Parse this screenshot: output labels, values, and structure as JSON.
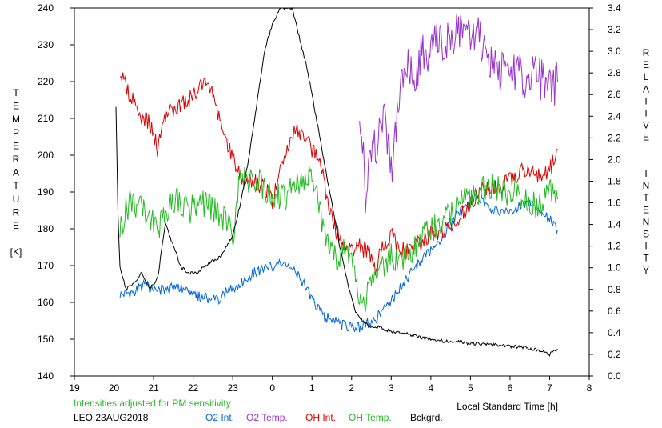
{
  "chart_data": {
    "type": "line",
    "left_axis_title_chars": [
      "T",
      "E",
      "M",
      "P",
      "E",
      "R",
      "A",
      "T",
      "U",
      "R",
      "E",
      "",
      "[K]"
    ],
    "right_axis_title_chars": [
      "R",
      "E",
      "L",
      "A",
      "T",
      "I",
      "V",
      "E",
      "",
      "",
      "I",
      "N",
      "T",
      "E",
      "N",
      "S",
      "I",
      "T",
      "Y"
    ],
    "xlabel": "Local Standard Time [h]",
    "note": "Intensities adjusted for PM sensitivity",
    "station_date": "LEO 23AUG2018",
    "x_ticks": [
      {
        "value": 19,
        "label": "19"
      },
      {
        "value": 21,
        "label": "21"
      },
      {
        "value": 22,
        "label": "22"
      },
      {
        "value": 23,
        "label": "23"
      },
      {
        "value": 24,
        "label": "0"
      },
      {
        "value": 25,
        "label": "1"
      },
      {
        "value": 26,
        "label": "2"
      },
      {
        "value": 27,
        "label": "3"
      },
      {
        "value": 28,
        "label": "4"
      },
      {
        "value": 29,
        "label": "5"
      },
      {
        "value": 30,
        "label": "6"
      },
      {
        "value": 31,
        "label": "7"
      },
      {
        "value": 32,
        "label": "8"
      }
    ],
    "x_tick_20": {
      "value": 20,
      "label": "20"
    },
    "xlim": [
      19,
      32
    ],
    "ylim_left": [
      140,
      240
    ],
    "ylim_right": [
      0.0,
      3.4
    ],
    "y_left_ticks": [
      "140",
      "150",
      "160",
      "170",
      "180",
      "190",
      "200",
      "210",
      "220",
      "230",
      "240"
    ],
    "y_right_ticks": [
      "0.0",
      "0.2",
      "0.4",
      "0.6",
      "0.8",
      "1.0",
      "1.2",
      "1.4",
      "1.6",
      "1.8",
      "2.0",
      "2.2",
      "2.4",
      "2.6",
      "2.8",
      "3.0",
      "3.2",
      "3.4"
    ],
    "grid": false,
    "series": [
      {
        "name": "O2 Int.",
        "color": "#0066dd",
        "axis": "right",
        "points": [
          [
            20.15,
            0.75
          ],
          [
            20.5,
            0.78
          ],
          [
            20.8,
            0.85
          ],
          [
            21.0,
            0.78
          ],
          [
            21.3,
            0.8
          ],
          [
            21.6,
            0.82
          ],
          [
            22.0,
            0.75
          ],
          [
            22.3,
            0.72
          ],
          [
            22.6,
            0.7
          ],
          [
            22.9,
            0.8
          ],
          [
            23.2,
            0.85
          ],
          [
            23.5,
            0.95
          ],
          [
            23.8,
            1.0
          ],
          [
            24.2,
            1.03
          ],
          [
            24.5,
            1.0
          ],
          [
            24.8,
            0.85
          ],
          [
            25.0,
            0.7
          ],
          [
            25.3,
            0.55
          ],
          [
            25.6,
            0.5
          ],
          [
            25.9,
            0.45
          ],
          [
            26.2,
            0.45
          ],
          [
            26.5,
            0.5
          ],
          [
            26.8,
            0.6
          ],
          [
            27.1,
            0.75
          ],
          [
            27.4,
            0.9
          ],
          [
            27.7,
            1.05
          ],
          [
            28.0,
            1.15
          ],
          [
            28.3,
            1.3
          ],
          [
            28.6,
            1.45
          ],
          [
            28.9,
            1.6
          ],
          [
            29.2,
            1.65
          ],
          [
            29.5,
            1.55
          ],
          [
            29.8,
            1.5
          ],
          [
            30.1,
            1.55
          ],
          [
            30.4,
            1.6
          ],
          [
            30.7,
            1.55
          ],
          [
            31.0,
            1.45
          ],
          [
            31.2,
            1.35
          ]
        ]
      },
      {
        "name": "O2 Temp.",
        "color": "#9933cc",
        "axis": "left",
        "points": [
          [
            26.2,
            215
          ],
          [
            26.35,
            190
          ],
          [
            26.55,
            200
          ],
          [
            26.8,
            210
          ],
          [
            27.0,
            195
          ],
          [
            27.2,
            215
          ],
          [
            27.4,
            225
          ],
          [
            27.6,
            222
          ],
          [
            27.8,
            228
          ],
          [
            28.0,
            227
          ],
          [
            28.2,
            232
          ],
          [
            28.4,
            230
          ],
          [
            28.6,
            234
          ],
          [
            28.8,
            233
          ],
          [
            29.0,
            230
          ],
          [
            29.2,
            232
          ],
          [
            29.4,
            228
          ],
          [
            29.6,
            226
          ],
          [
            29.8,
            222
          ],
          [
            30.0,
            220
          ],
          [
            30.2,
            225
          ],
          [
            30.4,
            220
          ],
          [
            30.6,
            222
          ],
          [
            30.8,
            220
          ],
          [
            31.0,
            218
          ],
          [
            31.2,
            220
          ]
        ]
      },
      {
        "name": "OH Int.",
        "color": "#dd0000",
        "axis": "right",
        "points": [
          [
            20.15,
            2.8
          ],
          [
            20.4,
            2.6
          ],
          [
            20.7,
            2.4
          ],
          [
            20.9,
            2.35
          ],
          [
            21.1,
            2.1
          ],
          [
            21.3,
            2.4
          ],
          [
            21.6,
            2.5
          ],
          [
            21.9,
            2.55
          ],
          [
            22.2,
            2.7
          ],
          [
            22.5,
            2.6
          ],
          [
            22.8,
            2.2
          ],
          [
            23.0,
            2.0
          ],
          [
            23.2,
            1.85
          ],
          [
            23.5,
            1.8
          ],
          [
            23.8,
            1.75
          ],
          [
            24.0,
            1.6
          ],
          [
            24.2,
            1.9
          ],
          [
            24.4,
            2.1
          ],
          [
            24.6,
            2.3
          ],
          [
            24.8,
            2.2
          ],
          [
            25.0,
            2.1
          ],
          [
            25.2,
            2.0
          ],
          [
            25.4,
            1.6
          ],
          [
            25.6,
            1.35
          ],
          [
            25.8,
            1.2
          ],
          [
            26.0,
            1.15
          ],
          [
            26.2,
            1.2
          ],
          [
            26.4,
            1.15
          ],
          [
            26.6,
            1.0
          ],
          [
            26.8,
            1.2
          ],
          [
            27.0,
            1.3
          ],
          [
            27.2,
            1.2
          ],
          [
            27.4,
            1.15
          ],
          [
            27.6,
            1.2
          ],
          [
            27.8,
            1.25
          ],
          [
            28.0,
            1.3
          ],
          [
            28.3,
            1.35
          ],
          [
            28.6,
            1.4
          ],
          [
            28.9,
            1.55
          ],
          [
            29.2,
            1.7
          ],
          [
            29.5,
            1.75
          ],
          [
            29.8,
            1.75
          ],
          [
            30.1,
            1.85
          ],
          [
            30.4,
            1.9
          ],
          [
            30.7,
            1.85
          ],
          [
            31.0,
            1.9
          ],
          [
            31.2,
            2.1
          ]
        ]
      },
      {
        "name": "OH Temp.",
        "color": "#22bb22",
        "axis": "left",
        "points": [
          [
            20.15,
            180
          ],
          [
            20.4,
            188
          ],
          [
            20.7,
            185
          ],
          [
            20.9,
            183
          ],
          [
            21.1,
            180
          ],
          [
            21.3,
            185
          ],
          [
            21.6,
            188
          ],
          [
            21.9,
            185
          ],
          [
            22.2,
            187
          ],
          [
            22.5,
            185
          ],
          [
            22.8,
            182
          ],
          [
            23.0,
            178
          ],
          [
            23.2,
            195
          ],
          [
            23.4,
            193
          ],
          [
            23.7,
            192
          ],
          [
            24.0,
            190
          ],
          [
            24.3,
            188
          ],
          [
            24.6,
            192
          ],
          [
            24.9,
            195
          ],
          [
            25.1,
            190
          ],
          [
            25.3,
            180
          ],
          [
            25.5,
            173
          ],
          [
            25.7,
            172
          ],
          [
            25.9,
            175
          ],
          [
            26.2,
            160
          ],
          [
            26.4,
            162
          ],
          [
            26.6,
            167
          ],
          [
            26.8,
            170
          ],
          [
            27.0,
            172
          ],
          [
            27.2,
            170
          ],
          [
            27.4,
            173
          ],
          [
            27.6,
            175
          ],
          [
            27.8,
            178
          ],
          [
            28.0,
            180
          ],
          [
            28.3,
            183
          ],
          [
            28.6,
            186
          ],
          [
            28.9,
            188
          ],
          [
            29.2,
            190
          ],
          [
            29.5,
            192
          ],
          [
            29.8,
            190
          ],
          [
            30.1,
            190
          ],
          [
            30.4,
            188
          ],
          [
            30.7,
            186
          ],
          [
            31.0,
            190
          ],
          [
            31.2,
            188
          ]
        ]
      },
      {
        "name": "Bckgrd.",
        "color": "#000000",
        "axis": "right",
        "points": [
          [
            20.05,
            2.5
          ],
          [
            20.1,
            1.5
          ],
          [
            20.15,
            1.0
          ],
          [
            20.3,
            0.8
          ],
          [
            20.5,
            0.85
          ],
          [
            20.7,
            0.95
          ],
          [
            20.9,
            0.8
          ],
          [
            21.1,
            0.9
          ],
          [
            21.3,
            1.4
          ],
          [
            21.5,
            1.2
          ],
          [
            21.7,
            1.0
          ],
          [
            21.9,
            0.95
          ],
          [
            22.1,
            0.95
          ],
          [
            22.4,
            1.05
          ],
          [
            22.7,
            1.1
          ],
          [
            23.0,
            1.3
          ],
          [
            23.2,
            1.6
          ],
          [
            23.4,
            2.0
          ],
          [
            23.6,
            2.5
          ],
          [
            23.8,
            3.0
          ],
          [
            24.0,
            3.25
          ],
          [
            24.2,
            3.4
          ],
          [
            24.5,
            3.4
          ],
          [
            24.7,
            3.1
          ],
          [
            24.9,
            2.8
          ],
          [
            25.1,
            2.4
          ],
          [
            25.3,
            2.0
          ],
          [
            25.5,
            1.6
          ],
          [
            25.7,
            1.2
          ],
          [
            25.9,
            0.85
          ],
          [
            26.1,
            0.6
          ],
          [
            26.3,
            0.5
          ],
          [
            26.5,
            0.45
          ],
          [
            26.7,
            0.45
          ],
          [
            26.9,
            0.42
          ],
          [
            27.2,
            0.4
          ],
          [
            27.5,
            0.38
          ],
          [
            27.8,
            0.35
          ],
          [
            28.1,
            0.33
          ],
          [
            28.4,
            0.32
          ],
          [
            28.7,
            0.32
          ],
          [
            29.0,
            0.3
          ],
          [
            29.4,
            0.3
          ],
          [
            29.8,
            0.28
          ],
          [
            30.2,
            0.27
          ],
          [
            30.6,
            0.25
          ],
          [
            30.9,
            0.22
          ],
          [
            31.0,
            0.2
          ],
          [
            31.2,
            0.25
          ]
        ]
      }
    ]
  }
}
